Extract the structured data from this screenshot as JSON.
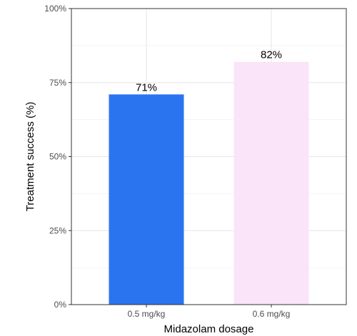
{
  "chart_data": {
    "type": "bar",
    "title": "",
    "xlabel": "Midazolam dosage",
    "ylabel": "Treatment success (%)",
    "categories": [
      "0.5 mg/kg",
      "0.6 mg/kg"
    ],
    "values": [
      71,
      82
    ],
    "data_labels": [
      "71%",
      "82%"
    ],
    "bar_colors": [
      "#2a74f0",
      "#f9e4f9"
    ],
    "ylim": [
      0,
      100
    ],
    "yticks": [
      0,
      25,
      50,
      75,
      100
    ],
    "ytick_labels": [
      "0%",
      "25%",
      "50%",
      "75%",
      "100%"
    ],
    "grid": true,
    "legend": "none"
  }
}
